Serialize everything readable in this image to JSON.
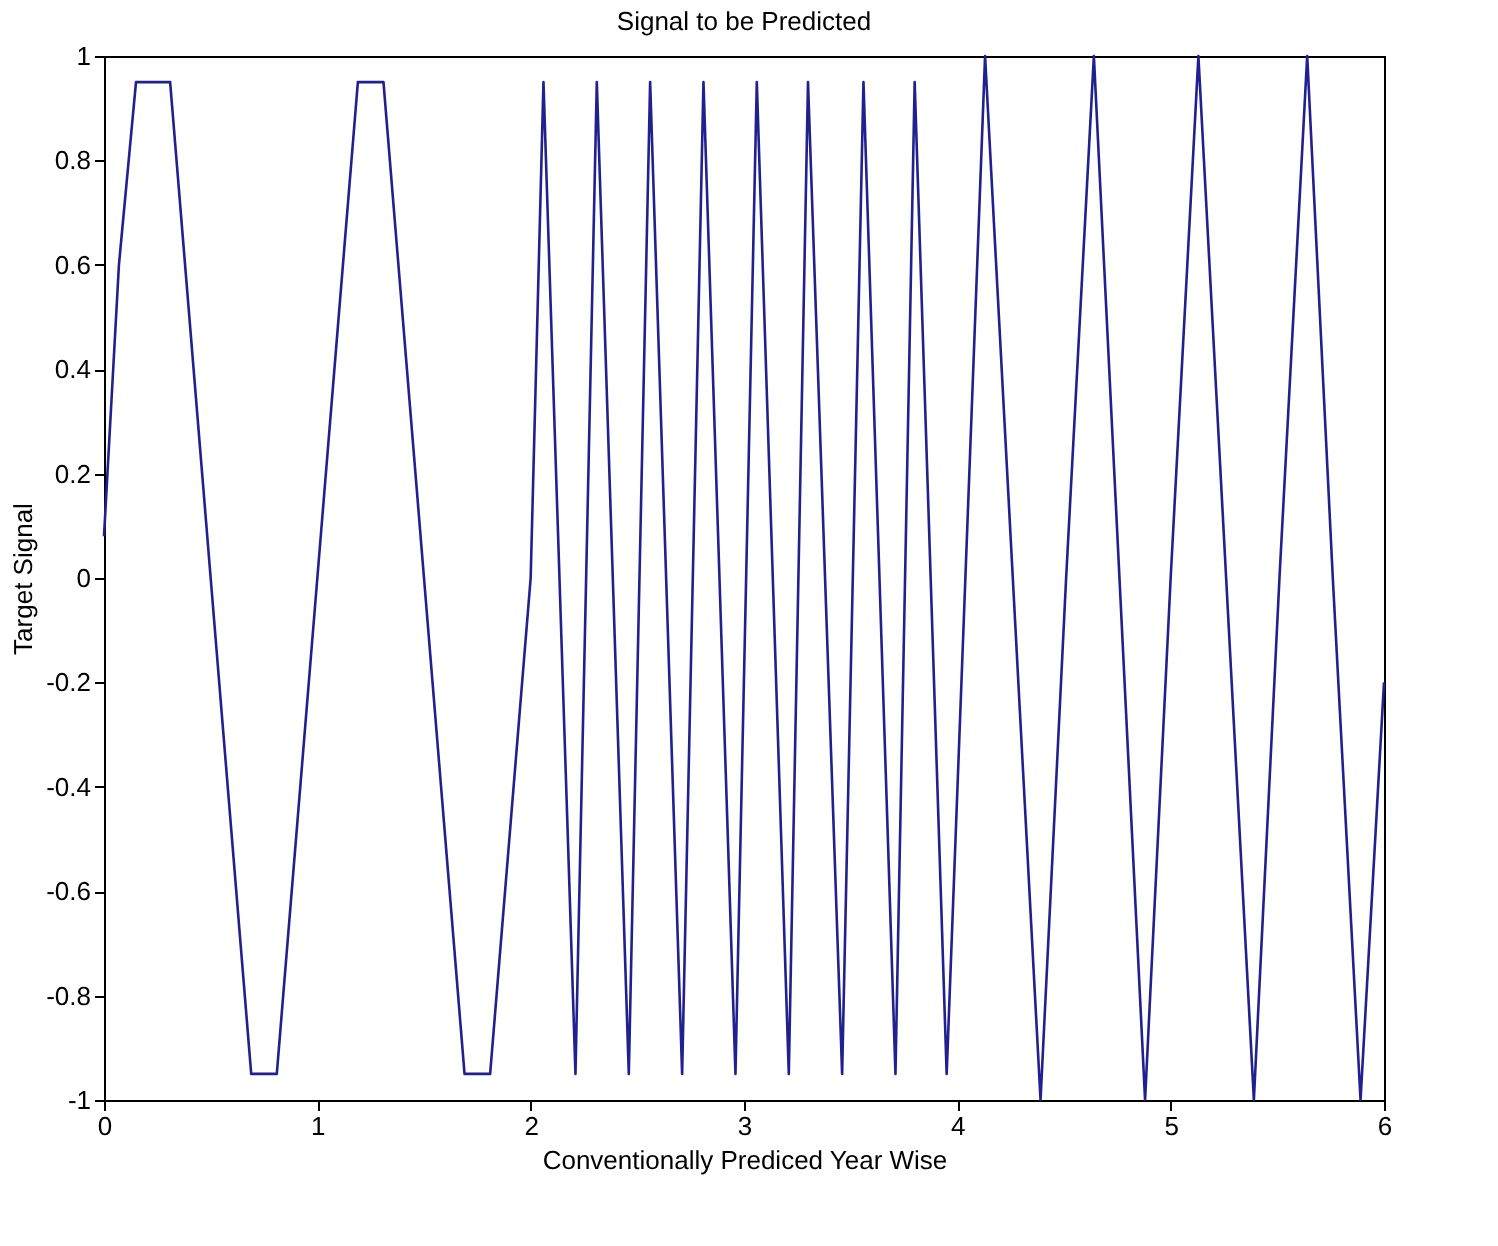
{
  "chart_data": {
    "type": "line",
    "title": "Signal to be Predicted",
    "xlabel": "Conventionally Prediced Year Wise",
    "ylabel": "Target Signal",
    "x": [
      0,
      0.07,
      0.15,
      0.31,
      0.5,
      0.69,
      0.81,
      1.0,
      1.19,
      1.31,
      1.5,
      1.69,
      1.81,
      2.0,
      2.06,
      2.21,
      2.31,
      2.46,
      2.56,
      2.71,
      2.81,
      2.96,
      3.06,
      3.21,
      3.3,
      3.46,
      3.56,
      3.71,
      3.8,
      3.95,
      4.13,
      4.26,
      4.39,
      4.51,
      4.64,
      4.76,
      4.88,
      5.0,
      5.13,
      5.26,
      5.39,
      5.51,
      5.64,
      5.76,
      5.89,
      6.0
    ],
    "series": [
      {
        "color": "#20208f",
        "values": [
          0.08,
          0.6,
          0.95,
          0.95,
          0,
          -0.95,
          -0.95,
          0,
          0.95,
          0.95,
          0,
          -0.95,
          -0.95,
          0,
          0.95,
          -0.95,
          0.95,
          -0.95,
          0.95,
          -0.95,
          0.95,
          -0.95,
          0.95,
          -0.95,
          0.95,
          -0.95,
          0.95,
          -0.95,
          0.95,
          -0.95,
          1,
          0,
          -1,
          0,
          1,
          0,
          -1,
          0,
          1,
          0,
          -1,
          0,
          1,
          0,
          -1,
          -0.2
        ]
      }
    ],
    "xlim": [
      0,
      6
    ],
    "xticks": [
      0,
      1,
      2,
      3,
      4,
      5,
      6
    ],
    "ylim": [
      -1,
      1
    ],
    "yticks": [
      -1,
      -0.8,
      -0.6,
      -0.4,
      -0.2,
      0,
      0.2,
      0.4,
      0.6,
      0.8,
      1
    ],
    "grid": false,
    "marker": "none",
    "line_style": "solid"
  }
}
